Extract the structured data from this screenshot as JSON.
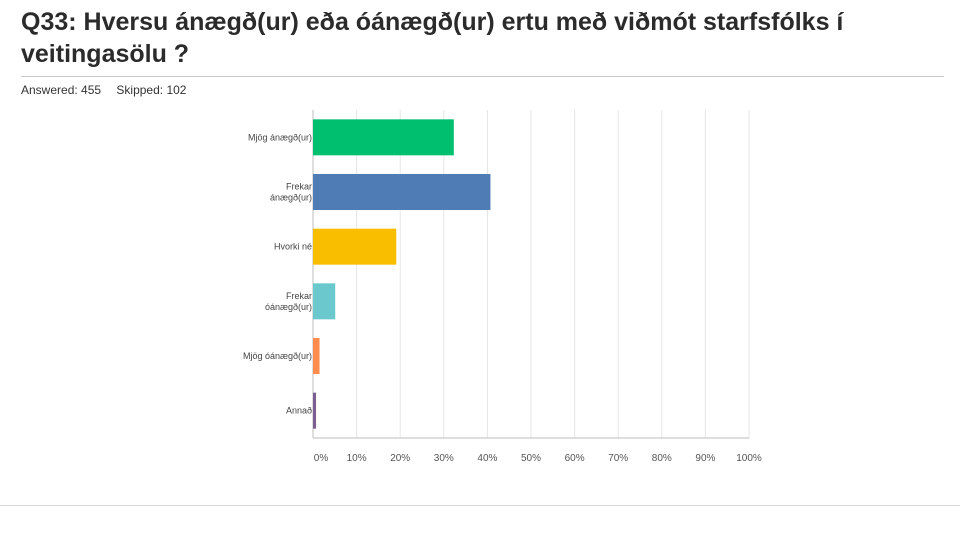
{
  "question": {
    "title": "Q33: Hversu  ánægð(ur) eða óánægð(ur) ertu með viðmót starfsfólks í veitingasölu ?"
  },
  "stats": {
    "answered": "Answered: 455",
    "skipped": "Skipped: 102"
  },
  "chart_data": {
    "type": "bar",
    "orientation": "horizontal",
    "categories": [
      [
        "Mjög ánægð(ur)"
      ],
      [
        "Frekar",
        "ánægð(ur)"
      ],
      [
        "Hvorki né"
      ],
      [
        "Frekar",
        "óánægð(ur)"
      ],
      [
        "Mjög óánægð(ur)"
      ],
      [
        "Annað"
      ]
    ],
    "values": [
      32.3,
      40.7,
      19.1,
      5.1,
      1.5,
      0.7
    ],
    "colors": [
      "#00bf6f",
      "#507cb6",
      "#f9be00",
      "#6bc8cd",
      "#ff8b4f",
      "#7d5e90"
    ],
    "xlim": [
      0,
      100
    ],
    "xticks": [
      "0%",
      "10%",
      "20%",
      "30%",
      "40%",
      "50%",
      "60%",
      "70%",
      "80%",
      "90%",
      "100%"
    ],
    "grid": true,
    "title": "",
    "xlabel": "",
    "ylabel": ""
  }
}
